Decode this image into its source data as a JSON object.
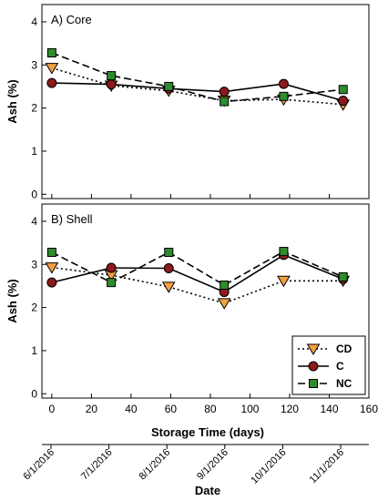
{
  "chart_data": [
    {
      "type": "line",
      "title": "A) Core",
      "ylabel": "Ash (%)",
      "xlabel": "",
      "xlim": [
        -5,
        160
      ],
      "ylim": [
        -0.1,
        4.4
      ],
      "xticks": [
        0,
        20,
        40,
        60,
        80,
        100,
        120,
        140,
        160
      ],
      "yticks": [
        0,
        1,
        2,
        3,
        4
      ],
      "x": [
        0,
        30,
        59,
        87,
        117,
        147
      ],
      "series": [
        {
          "name": "CD",
          "values": [
            2.93,
            2.52,
            2.4,
            2.17,
            2.2,
            2.08
          ],
          "color": "#f5a040",
          "marker": "triangle-down",
          "line": "dotted"
        },
        {
          "name": "C",
          "values": [
            2.58,
            2.55,
            2.45,
            2.38,
            2.56,
            2.17
          ],
          "color": "#8b1a1a",
          "marker": "circle",
          "line": "solid"
        },
        {
          "name": "NC",
          "values": [
            3.28,
            2.75,
            2.5,
            2.15,
            2.27,
            2.43
          ],
          "color": "#2e8b2e",
          "marker": "square",
          "line": "dashed"
        }
      ]
    },
    {
      "type": "line",
      "title": "B) Shell",
      "ylabel": "Ash (%)",
      "xlabel": "Storage Time (days)",
      "xlim": [
        -5,
        160
      ],
      "ylim": [
        -0.1,
        4.4
      ],
      "xticks": [
        0,
        20,
        40,
        60,
        80,
        100,
        120,
        140,
        160
      ],
      "yticks": [
        0,
        1,
        2,
        3,
        4
      ],
      "x": [
        0,
        30,
        59,
        87,
        117,
        147
      ],
      "legend": "bottom-right",
      "series": [
        {
          "name": "CD",
          "values": [
            2.93,
            2.75,
            2.48,
            2.1,
            2.62,
            2.62
          ],
          "color": "#f5a040",
          "marker": "triangle-down",
          "line": "dotted"
        },
        {
          "name": "C",
          "values": [
            2.58,
            2.92,
            2.91,
            2.36,
            3.22,
            2.66
          ],
          "color": "#8b1a1a",
          "marker": "circle",
          "line": "solid"
        },
        {
          "name": "NC",
          "values": [
            3.28,
            2.58,
            3.28,
            2.52,
            3.3,
            2.71
          ],
          "color": "#2e8b2e",
          "marker": "square",
          "line": "dashed"
        }
      ]
    }
  ],
  "date_axis": {
    "title": "Date",
    "labels": [
      "6/1/2016",
      "7/1/2016",
      "8/1/2016",
      "9/1/2016",
      "10/1/2016",
      "11/1/2016"
    ]
  }
}
